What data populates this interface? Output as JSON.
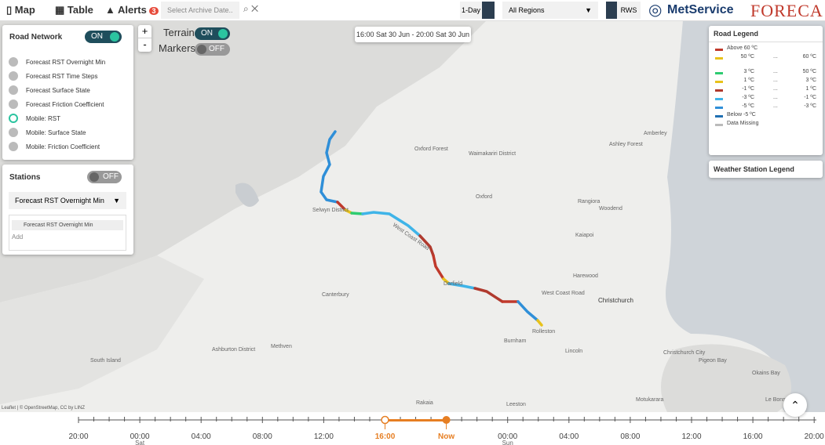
{
  "nav": {
    "map": "Map",
    "table": "Table",
    "alerts": "Alerts",
    "alert_count": "3",
    "archive_placeholder": "Select Archive Date..",
    "period": "1-Day",
    "region": "All Regions",
    "rws": "RWS",
    "brand1": "MetService",
    "brand2": "FORECA"
  },
  "road_network": {
    "title": "Road Network",
    "toggle": "ON",
    "options": [
      "Forecast RST Overnight Min",
      "Forecast RST Time Steps",
      "Forecast Surface State",
      "Forecast Friction Coefficient",
      "Mobile: RST",
      "Mobile: Surface State",
      "Mobile: Friction Coefficient"
    ],
    "selected": 4
  },
  "stations": {
    "title": "Stations",
    "toggle": "OFF",
    "dropdown": "Forecast RST Overnight Min",
    "chip": "Forecast RST Overnight Min",
    "add": "Add"
  },
  "map_controls": {
    "zoom_in": "+",
    "zoom_out": "-",
    "terrain": "Terrain",
    "terrain_toggle": "ON",
    "markers": "Markers",
    "markers_toggle": "OFF"
  },
  "time_range": "16:00 Sat 30 Jun - 20:00 Sat 30 Jun",
  "road_legend": {
    "title": "Road Legend",
    "sep": "...",
    "rows": [
      {
        "label": "Above 60 ºC",
        "color": "#c0392b"
      },
      {
        "from": "50 ºC",
        "to": "60 ºC",
        "color": "#e8c21b"
      },
      {
        "from": "3 ºC",
        "to": "50 ºC",
        "color": "#2ecc71"
      },
      {
        "from": "1 ºC",
        "to": "3 ºC",
        "color": "#e8c21b"
      },
      {
        "from": "-1 ºC",
        "to": "1 ºC",
        "color": "#b03a2e"
      },
      {
        "from": "-3 ºC",
        "to": "-1 ºC",
        "color": "#3fb4e8"
      },
      {
        "from": "-5 ºC",
        "to": "-3 ºC",
        "color": "#2f8fd8"
      },
      {
        "label": "Below -5 ºC",
        "color": "#1f6fb2"
      },
      {
        "label": "Data Missing",
        "color": "#bbbbbb"
      }
    ]
  },
  "weather_legend": "Weather Station Legend",
  "map_labels": [
    "Oxford Forest",
    "Waimakariri District",
    "Oxford",
    "Rangiora",
    "Woodend",
    "Kaiapoi",
    "Amberley",
    "Ashley Forest",
    "Selwyn District",
    "West Coast Road",
    "Darfield",
    "Canterbury",
    "Harewood",
    "West Coast Road",
    "Christchurch",
    "Rolleston",
    "Burnham",
    "Lincoln",
    "Methven",
    "Ashburton District",
    "South Island",
    "Rakaia",
    "Leeston",
    "Christchurch City",
    "Pigeon Bay",
    "Okains Bay",
    "Le Bons Bay",
    "Motukarara"
  ],
  "attribution": "Leaflet | © OpenStreetMap, CC by LINZ",
  "timeline": {
    "ticks": [
      {
        "label": "20:00"
      },
      {
        "label": "00:00",
        "day": "Sat"
      },
      {
        "label": "04:00"
      },
      {
        "label": "08:00"
      },
      {
        "label": "12:00"
      },
      {
        "label": "16:00"
      },
      {
        "label": "Now"
      },
      {
        "label": "00:00",
        "day": "Sun"
      },
      {
        "label": "04:00"
      },
      {
        "label": "08:00"
      },
      {
        "label": "12:00"
      },
      {
        "label": "16:00"
      },
      {
        "label": "20:00"
      }
    ],
    "start_index": 5,
    "now_index": 6
  }
}
